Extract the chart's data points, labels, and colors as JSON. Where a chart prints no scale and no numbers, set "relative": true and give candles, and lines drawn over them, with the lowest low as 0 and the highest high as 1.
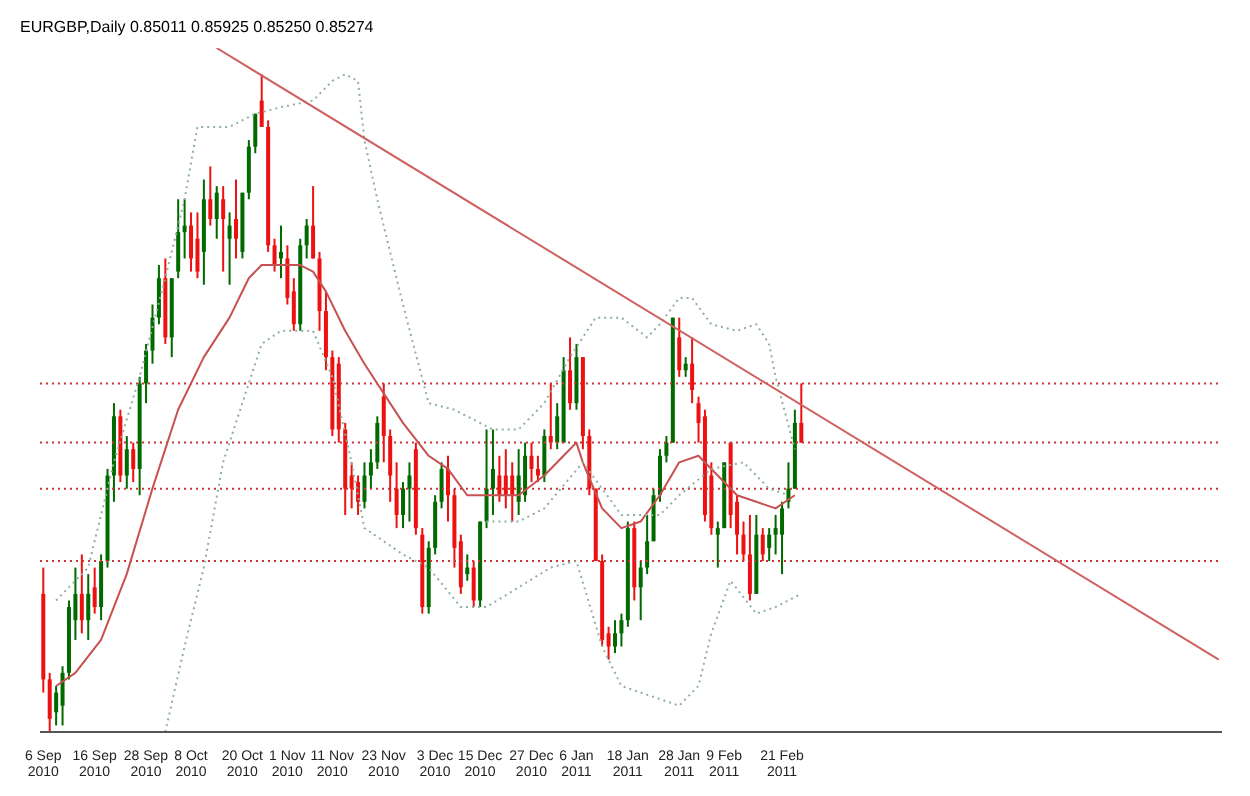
{
  "chart_data": {
    "type": "candlestick",
    "title": "EURGBP,Daily  0.85011 0.85925 0.85250 0.85274",
    "relative": true,
    "categories": [
      "6 Sep 2010",
      null,
      null,
      null,
      null,
      null,
      null,
      null,
      "16 Sep 2010",
      null,
      null,
      null,
      null,
      null,
      null,
      null,
      "28 Sep 2010",
      null,
      null,
      null,
      null,
      null,
      null,
      "8 Oct 2010",
      null,
      null,
      null,
      null,
      null,
      null,
      null,
      "20 Oct 2010",
      null,
      null,
      null,
      null,
      null,
      null,
      "1 Nov 2010",
      null,
      null,
      null,
      null,
      null,
      null,
      "11 Nov 2010",
      null,
      null,
      null,
      null,
      null,
      null,
      null,
      "23 Nov 2010",
      null,
      null,
      null,
      null,
      null,
      null,
      null,
      "3 Dec 2010",
      null,
      null,
      null,
      null,
      null,
      null,
      "15 Dec 2010",
      null,
      null,
      null,
      null,
      null,
      null,
      null,
      "27 Dec 2010",
      null,
      null,
      null,
      null,
      null,
      null,
      "6 Jan 2011",
      null,
      null,
      null,
      null,
      null,
      null,
      null,
      "18 Jan 2011",
      null,
      null,
      null,
      null,
      null,
      null,
      null,
      "28 Jan 2011",
      null,
      null,
      null,
      null,
      null,
      null,
      "9 Feb 2011",
      null,
      null,
      null,
      null,
      null,
      null,
      null,
      null,
      "21 Feb 2011",
      null,
      null,
      null,
      null,
      null,
      null,
      null,
      null,
      null,
      null,
      null,
      null,
      null,
      null,
      null,
      null,
      null,
      null,
      null,
      null,
      null,
      null,
      null,
      null,
      null,
      null,
      null,
      null,
      null,
      null,
      null,
      null,
      null,
      null,
      null,
      null,
      null,
      null,
      null,
      null,
      null,
      null,
      null,
      null,
      null,
      null,
      null,
      null,
      null,
      null,
      null,
      null,
      null,
      null,
      null,
      null,
      null,
      null,
      null,
      null,
      null,
      null,
      null,
      null,
      null,
      null,
      null,
      null
    ],
    "colors": [
      "#ee1111",
      "#ee1111",
      "#006a00",
      "#006a00",
      "#006a00",
      "#006a00",
      "#ee1111",
      "#006a00",
      "#ee1111",
      "#006a00",
      "#006a00",
      "#006a00",
      "#ee1111",
      "#006a00",
      "#ee1111",
      "#006a00",
      "#006a00",
      "#006a00",
      "#006a00",
      "#ee1111",
      "#006a00",
      "#006a00",
      "#006a00",
      "#ee1111",
      "#ee1111",
      "#006a00",
      "#ee1111",
      "#006a00",
      "#ee1111",
      "#006a00",
      "#ee1111",
      "#006a00",
      "#006a00",
      "#006a00",
      "#ee1111",
      "#ee1111",
      "#ee1111",
      "#006a00",
      "#ee1111",
      "#ee1111",
      "#006a00",
      "#006a00",
      "#ee1111",
      "#ee1111",
      "#ee1111",
      "#ee1111",
      "#ee1111",
      "#ee1111",
      "#ee1111",
      "#ee1111",
      "#006a00",
      "#006a00",
      "#006a00",
      "#ee1111",
      "#ee1111",
      "#ee1111",
      "#006a00",
      "#006a00",
      "#ee1111",
      "#ee1111",
      "#006a00",
      "#006a00",
      "#006a00",
      "#ee1111",
      "#ee1111",
      "#ee1111",
      "#006a00",
      "#ee1111",
      "#006a00",
      "#006a00",
      "#006a00",
      "#ee1111",
      "#ee1111",
      "#ee1111",
      "#006a00",
      "#006a00",
      "#ee1111",
      "#ee1111",
      "#006a00",
      "#ee1111",
      "#006a00",
      "#006a00",
      "#ee1111",
      "#006a00",
      "#ee1111",
      "#ee1111",
      "#ee1111",
      "#ee1111",
      "#ee1111",
      "#006a00",
      "#006a00",
      "#006a00",
      "#ee1111",
      "#006a00",
      "#006a00",
      "#006a00",
      "#006a00",
      "#006a00",
      "#006a00",
      "#ee1111",
      "#006a00",
      "#ee1111",
      "#ee1111",
      "#ee1111",
      "#ee1111",
      "#006a00",
      "#006a00",
      "#ee1111",
      "#ee1111",
      "#ee1111",
      "#ee1111",
      "#006a00",
      "#ee1111",
      "#006a00",
      "#006a00",
      "#006a00",
      "#006a00",
      "#006a00",
      "#ee1111",
      null,
      null,
      null,
      null,
      null,
      null,
      null,
      null,
      null,
      null,
      null,
      null,
      null,
      null,
      null,
      null,
      null,
      null,
      null,
      null,
      null,
      null,
      null,
      null,
      null,
      null,
      null,
      null,
      null,
      null,
      null,
      null,
      null,
      null,
      null,
      null,
      null,
      null,
      null,
      null,
      null,
      null,
      null,
      null,
      null,
      null,
      null,
      null,
      null,
      null,
      null,
      null,
      null,
      null,
      null,
      null,
      null,
      null,
      null,
      null,
      null,
      null,
      null,
      null,
      null
    ],
    "ohlc": [
      [
        0.21,
        0.25,
        0.06,
        0.08
      ],
      [
        0.08,
        0.09,
        0,
        0.02
      ],
      [
        0.03,
        0.07,
        0.01,
        0.06
      ],
      [
        0.04,
        0.1,
        0.01,
        0.09
      ],
      [
        0.09,
        0.2,
        0.08,
        0.19
      ],
      [
        0.17,
        0.25,
        0.14,
        0.21
      ],
      [
        0.21,
        0.27,
        0.15,
        0.17
      ],
      [
        0.17,
        0.24,
        0.14,
        0.21
      ],
      [
        0.22,
        0.25,
        0.18,
        0.19
      ],
      [
        0.19,
        0.27,
        0.17,
        0.26
      ],
      [
        0.26,
        0.4,
        0.25,
        0.39
      ],
      [
        0.39,
        0.5,
        0.35,
        0.48
      ],
      [
        0.48,
        0.49,
        0.38,
        0.39
      ],
      [
        0.39,
        0.45,
        0.37,
        0.43
      ],
      [
        0.43,
        0.44,
        0.38,
        0.4
      ],
      [
        0.4,
        0.54,
        0.36,
        0.53
      ],
      [
        0.53,
        0.59,
        0.5,
        0.58
      ],
      [
        0.58,
        0.65,
        0.56,
        0.63
      ],
      [
        0.63,
        0.71,
        0.62,
        0.69
      ],
      [
        0.69,
        0.72,
        0.59,
        0.6
      ],
      [
        0.6,
        0.69,
        0.57,
        0.69
      ],
      [
        0.7,
        0.81,
        0.69,
        0.76
      ],
      [
        0.76,
        0.81,
        0.72,
        0.77
      ],
      [
        0.77,
        0.79,
        0.7,
        0.72
      ],
      [
        0.75,
        0.79,
        0.69,
        0.7
      ],
      [
        0.73,
        0.84,
        0.68,
        0.81
      ],
      [
        0.81,
        0.86,
        0.77,
        0.78
      ],
      [
        0.78,
        0.83,
        0.75,
        0.82
      ],
      [
        0.81,
        0.83,
        0.7,
        0.78
      ],
      [
        0.75,
        0.79,
        0.68,
        0.77
      ],
      [
        0.78,
        0.84,
        0.72,
        0.75
      ],
      [
        0.73,
        0.82,
        0.72,
        0.82
      ],
      [
        0.82,
        0.9,
        0.81,
        0.89
      ],
      [
        0.89,
        0.94,
        0.88,
        0.94
      ],
      [
        0.96,
        1,
        0.92,
        0.92
      ],
      [
        0.92,
        0.93,
        0.73,
        0.74
      ],
      [
        0.74,
        0.75,
        0.7,
        0.71
      ],
      [
        0.72,
        0.77,
        0.69,
        0.73
      ],
      [
        0.72,
        0.74,
        0.65,
        0.66
      ],
      [
        0.67,
        0.69,
        0.61,
        0.62
      ],
      [
        0.62,
        0.75,
        0.61,
        0.74
      ],
      [
        0.74,
        0.78,
        0.72,
        0.77
      ],
      [
        0.77,
        0.83,
        0.72,
        0.72
      ],
      [
        0.72,
        0.73,
        0.61,
        0.64
      ],
      [
        0.64,
        0.67,
        0.55,
        0.57
      ],
      [
        0.57,
        0.58,
        0.45,
        0.46
      ],
      [
        0.56,
        0.57,
        0.44,
        0.46
      ],
      [
        0.46,
        0.47,
        0.33,
        0.37
      ],
      [
        0.39,
        0.41,
        0.34,
        0.37
      ],
      [
        0.38,
        0.39,
        0.33,
        0.35
      ],
      [
        0.35,
        0.41,
        0.34,
        0.39
      ],
      [
        0.39,
        0.43,
        0.37,
        0.41
      ],
      [
        0.41,
        0.48,
        0.4,
        0.47
      ],
      [
        0.51,
        0.53,
        0.41,
        0.45
      ],
      [
        0.45,
        0.46,
        0.35,
        0.39
      ],
      [
        0.37,
        0.41,
        0.31,
        0.33
      ],
      [
        0.33,
        0.38,
        0.31,
        0.37
      ],
      [
        0.37,
        0.41,
        0.32,
        0.39
      ],
      [
        0.43,
        0.44,
        0.3,
        0.31
      ],
      [
        0.3,
        0.31,
        0.18,
        0.19
      ],
      [
        0.19,
        0.29,
        0.18,
        0.28
      ],
      [
        0.28,
        0.36,
        0.27,
        0.35
      ],
      [
        0.35,
        0.41,
        0.34,
        0.4
      ],
      [
        0.4,
        0.42,
        0.32,
        0.36
      ],
      [
        0.36,
        0.37,
        0.25,
        0.28
      ],
      [
        0.29,
        0.3,
        0.21,
        0.22
      ],
      [
        0.24,
        0.27,
        0.23,
        0.25
      ],
      [
        0.25,
        0.26,
        0.19,
        0.2
      ],
      [
        0.2,
        0.32,
        0.19,
        0.32
      ],
      [
        0.32,
        0.46,
        0.31,
        0.37
      ],
      [
        0.37,
        0.46,
        0.33,
        0.4
      ],
      [
        0.39,
        0.42,
        0.35,
        0.36
      ],
      [
        0.39,
        0.43,
        0.34,
        0.36
      ],
      [
        0.39,
        0.41,
        0.32,
        0.36
      ],
      [
        0.35,
        0.43,
        0.33,
        0.39
      ],
      [
        0.36,
        0.44,
        0.35,
        0.42
      ],
      [
        0.42,
        0.44,
        0.38,
        0.4
      ],
      [
        0.4,
        0.42,
        0.38,
        0.39
      ],
      [
        0.39,
        0.46,
        0.38,
        0.45
      ],
      [
        0.45,
        0.53,
        0.43,
        0.44
      ],
      [
        0.44,
        0.5,
        0.43,
        0.48
      ],
      [
        0.44,
        0.57,
        0.44,
        0.55
      ],
      [
        0.55,
        0.6,
        0.49,
        0.5
      ],
      [
        0.5,
        0.59,
        0.49,
        0.57
      ],
      [
        0.57,
        0.57,
        0.43,
        0.45
      ],
      [
        0.45,
        0.46,
        0.36,
        0.37
      ],
      [
        0.37,
        0.37,
        0.26,
        0.26
      ],
      [
        0.26,
        0.27,
        0.13,
        0.14
      ],
      [
        0.15,
        0.16,
        0.11,
        0.13
      ],
      [
        0.13,
        0.17,
        0.12,
        0.15
      ],
      [
        0.15,
        0.18,
        0.13,
        0.17
      ],
      [
        0.17,
        0.32,
        0.16,
        0.31
      ],
      [
        0.31,
        0.32,
        0.2,
        0.22
      ],
      [
        0.22,
        0.26,
        0.17,
        0.25
      ],
      [
        0.25,
        0.33,
        0.24,
        0.29
      ],
      [
        0.29,
        0.37,
        0.29,
        0.36
      ],
      [
        0.36,
        0.43,
        0.35,
        0.42
      ],
      [
        0.42,
        0.45,
        0.41,
        0.44
      ],
      [
        0.44,
        0.63,
        0.44,
        0.63
      ],
      [
        0.6,
        0.63,
        0.54,
        0.55
      ],
      [
        0.55,
        0.57,
        0.54,
        0.56
      ],
      [
        0.56,
        0.6,
        0.5,
        0.52
      ],
      [
        0.5,
        0.51,
        0.44,
        0.47
      ],
      [
        0.48,
        0.49,
        0.32,
        0.33
      ],
      [
        0.39,
        0.41,
        0.3,
        0.31
      ],
      [
        0.3,
        0.32,
        0.25,
        0.31
      ],
      [
        0.31,
        0.41,
        0.31,
        0.41
      ],
      [
        0.44,
        0.44,
        0.31,
        0.33
      ],
      [
        0.35,
        0.36,
        0.27,
        0.3
      ],
      [
        0.3,
        0.32,
        0.26,
        0.27
      ],
      [
        0.27,
        0.33,
        0.2,
        0.21
      ],
      [
        0.21,
        0.33,
        0.21,
        0.3
      ],
      [
        0.3,
        0.31,
        0.26,
        0.27
      ],
      [
        0.28,
        0.31,
        0.26,
        0.3
      ],
      [
        0.3,
        0.33,
        0.27,
        0.31
      ],
      [
        0.3,
        0.35,
        0.24,
        0.34
      ],
      [
        0.35,
        0.41,
        0.34,
        0.37
      ],
      [
        0.37,
        0.49,
        0.37,
        0.47
      ],
      [
        0.47,
        0.53,
        0.44,
        0.44
      ],
      null,
      null,
      null,
      null,
      null,
      null,
      null,
      null,
      null,
      null,
      null,
      null,
      null,
      null,
      null,
      null,
      null,
      null,
      null,
      null,
      null,
      null,
      null,
      null,
      null,
      null,
      null,
      null,
      null,
      null,
      null,
      null,
      null,
      null,
      null,
      null,
      null,
      null,
      null,
      null,
      null,
      null,
      null,
      null,
      null,
      null,
      null,
      null,
      null,
      null,
      null,
      null,
      null,
      null,
      null,
      null,
      null,
      null,
      null,
      null,
      null,
      null,
      null,
      null,
      null
    ],
    "series": [
      {
        "type": "line",
        "color": "#c85050",
        "line_style": "solid",
        "values": [
          null,
          null,
          0.07,
          null,
          null,
          0.09,
          null,
          null,
          null,
          0.14,
          null,
          null,
          null,
          0.24,
          null,
          null,
          null,
          0.37,
          null,
          null,
          null,
          0.49,
          null,
          null,
          null,
          0.57,
          null,
          null,
          null,
          0.63,
          null,
          null,
          0.69,
          null,
          0.71,
          null,
          0.71,
          null,
          null,
          null,
          0.71,
          null,
          0.7,
          null,
          0.67,
          null,
          null,
          0.61,
          null,
          null,
          0.56,
          null,
          0.53,
          null,
          null,
          null,
          0.47,
          null,
          null,
          null,
          0.42,
          null,
          null,
          0.4,
          null,
          null,
          0.36,
          null,
          null,
          null,
          0.36,
          null,
          null,
          null,
          0.36,
          null,
          null,
          null,
          0.39,
          null,
          null,
          0.42,
          null,
          0.44,
          0.41,
          null,
          null,
          0.34,
          null,
          null,
          0.31,
          null,
          null,
          0.32,
          null,
          null,
          0.36,
          null,
          null,
          0.41,
          null,
          null,
          0.42,
          null,
          null,
          0.39,
          null,
          null,
          0.36,
          null,
          null,
          0.35,
          null,
          null,
          0.34,
          null,
          null,
          0.36,
          null,
          null,
          null,
          null,
          null,
          null,
          null,
          null,
          null,
          null,
          null,
          null,
          null,
          null,
          null,
          null,
          null,
          null,
          null,
          null,
          null,
          null,
          null,
          null,
          null,
          null,
          null,
          null,
          null,
          null,
          null,
          null,
          null,
          null,
          null,
          null,
          null,
          null,
          null,
          null,
          null,
          null,
          null,
          null,
          null,
          null,
          null,
          null,
          null,
          null,
          null,
          null,
          null,
          null,
          null,
          null,
          null,
          null,
          null,
          null,
          null,
          null,
          null,
          null,
          null,
          null
        ]
      },
      {
        "type": "line",
        "color": "#8fb0a0",
        "line_style": "dotted",
        "values": [
          null,
          null,
          0.2,
          null,
          null,
          null,
          null,
          0.25,
          null,
          null,
          null,
          0.41,
          null,
          null,
          null,
          0.54,
          null,
          null,
          null,
          0.69,
          null,
          null,
          0.81,
          null,
          0.92,
          null,
          null,
          null,
          null,
          0.92,
          null,
          null,
          null,
          0.94,
          null,
          null,
          null,
          0.95,
          null,
          null,
          null,
          null,
          0.96,
          null,
          null,
          0.99,
          null,
          1,
          null,
          0.99,
          0.9,
          null,
          0.81,
          null,
          null,
          null,
          0.65,
          null,
          null,
          null,
          0.5,
          null,
          null,
          null,
          0.49,
          null,
          null,
          null,
          null,
          null,
          0.46,
          null,
          null,
          null,
          0.46,
          null,
          null,
          null,
          0.5,
          null,
          null,
          null,
          0.57,
          null,
          null,
          null,
          0.63,
          null,
          null,
          null,
          0.63,
          null,
          null,
          null,
          0.6,
          null,
          0.62,
          null,
          null,
          0.66,
          null,
          0.66,
          null,
          null,
          0.62,
          null,
          null,
          null,
          0.61,
          null,
          null,
          0.62,
          null,
          0.59,
          0.54,
          null,
          null,
          0.43,
          null,
          null,
          null,
          null,
          null,
          null,
          null,
          null,
          null,
          null,
          null,
          null,
          null,
          null,
          null,
          null,
          null,
          null,
          null,
          null,
          null,
          null,
          null,
          null,
          null,
          null,
          null,
          null,
          null,
          null,
          null,
          null,
          null,
          null,
          null,
          null,
          null,
          null,
          null,
          null,
          null,
          null,
          null,
          null,
          null,
          null,
          null,
          null,
          null,
          null,
          null,
          null,
          null,
          null,
          null,
          null,
          null,
          null,
          null,
          null,
          null,
          null,
          null,
          null,
          null,
          null
        ]
      },
      {
        "type": "line",
        "color": "#8fb0a0",
        "line_style": "dotted",
        "values": [
          null,
          null,
          null,
          null,
          null,
          null,
          null,
          null,
          null,
          null,
          null,
          null,
          null,
          null,
          null,
          null,
          null,
          null,
          null,
          0,
          null,
          null,
          0.13,
          null,
          null,
          0.25,
          null,
          null,
          0.41,
          null,
          null,
          0.5,
          null,
          null,
          0.59,
          null,
          null,
          0.61,
          null,
          null,
          null,
          null,
          0.61,
          null,
          null,
          0.54,
          null,
          null,
          0.41,
          null,
          0.31,
          null,
          null,
          0.29,
          null,
          null,
          0.27,
          null,
          null,
          null,
          0.25,
          null,
          null,
          null,
          null,
          0.19,
          null,
          null,
          null,
          0.19,
          null,
          null,
          null,
          null,
          0.22,
          null,
          null,
          null,
          null,
          0.25,
          null,
          null,
          null,
          0.26,
          null,
          null,
          null,
          0.13,
          null,
          null,
          0.07,
          null,
          null,
          null,
          null,
          null,
          0.05,
          null,
          null,
          0.04,
          null,
          null,
          0.07,
          null,
          0.15,
          null,
          null,
          0.23,
          null,
          null,
          null,
          0.18,
          null,
          null,
          0.19,
          null,
          null,
          null,
          0.21,
          null,
          null,
          null,
          null,
          null,
          null,
          null,
          null,
          null,
          null,
          null,
          null,
          null,
          null,
          null,
          null,
          null,
          null,
          null,
          null,
          null,
          null,
          null,
          null,
          null,
          null,
          null,
          null,
          null,
          null,
          null,
          null,
          null,
          null,
          null,
          null,
          null,
          null,
          null,
          null,
          null,
          null,
          null,
          null,
          null,
          null,
          null,
          null,
          null,
          null,
          null,
          null,
          null,
          null,
          null,
          null,
          null,
          null,
          null,
          null,
          null,
          null,
          null,
          null,
          null
        ]
      },
      {
        "type": "line",
        "color": "#8fb0a0",
        "line_style": "dotted",
        "values": [
          null,
          null,
          null,
          null,
          null,
          null,
          null,
          null,
          null,
          null,
          null,
          null,
          null,
          null,
          null,
          null,
          null,
          null,
          null,
          null,
          null,
          null,
          null,
          null,
          null,
          null,
          null,
          null,
          null,
          null,
          null,
          null,
          null,
          null,
          null,
          null,
          null,
          null,
          null,
          null,
          null,
          null,
          null,
          null,
          null,
          null,
          null,
          null,
          null,
          null,
          null,
          null,
          null,
          null,
          null,
          null,
          null,
          null,
          null,
          null,
          null,
          null,
          null,
          null,
          null,
          null,
          null,
          null,
          null,
          0.32,
          null,
          null,
          null,
          null,
          0.32,
          null,
          null,
          null,
          0.34,
          null,
          null,
          null,
          null,
          null,
          0.41,
          null,
          null,
          null,
          null,
          null,
          0.33,
          null,
          null,
          null,
          null,
          null,
          0.33,
          null,
          null,
          0.36,
          null,
          null,
          null,
          null,
          0.4,
          null,
          null,
          null,
          null,
          0.41,
          null,
          null,
          null,
          0.37,
          null,
          null,
          0.36,
          null,
          null,
          null,
          null,
          null,
          null,
          null,
          null,
          null,
          null,
          null,
          null,
          null,
          null,
          null,
          null,
          null,
          null,
          null,
          null,
          null,
          null,
          null,
          null,
          null,
          null,
          null,
          null,
          null,
          null,
          null,
          null,
          null,
          null,
          null,
          null,
          null,
          null,
          null,
          null,
          null,
          null,
          null,
          null,
          null,
          null,
          null,
          null,
          null,
          null,
          null,
          null,
          null,
          null,
          null,
          null,
          null,
          null,
          null,
          null,
          null,
          null,
          null,
          null,
          null,
          null,
          null
        ]
      },
      {
        "type": "line",
        "color": "#d06060",
        "line_style": "solid",
        "values": [
          null,
          null,
          null,
          null,
          null,
          null,
          null,
          null,
          null,
          null,
          null,
          null,
          null,
          null,
          null,
          null,
          null,
          null,
          null,
          null,
          null,
          null,
          null,
          null,
          null,
          null,
          null,
          1.04,
          null,
          null,
          null,
          null,
          null,
          null,
          null,
          null,
          null,
          null,
          null,
          null,
          null,
          null,
          null,
          null,
          null,
          null,
          null,
          null,
          null,
          null,
          null,
          null,
          null,
          null,
          null,
          null,
          null,
          null,
          null,
          null,
          null,
          null,
          null,
          null,
          null,
          null,
          null,
          null,
          null,
          null,
          null,
          null,
          null,
          null,
          null,
          null,
          null,
          null,
          null,
          null,
          null,
          null,
          null,
          null,
          null,
          null,
          null,
          null,
          null,
          null,
          null,
          null,
          null,
          null,
          null,
          null,
          null,
          null,
          null,
          null,
          null,
          null,
          null,
          null,
          null,
          null,
          null,
          null,
          null,
          null,
          null,
          null,
          null,
          null,
          null,
          null,
          null,
          null,
          null,
          null,
          null,
          null,
          null,
          null,
          null,
          null,
          null,
          null,
          null,
          null,
          null,
          null,
          null,
          null,
          null,
          null,
          null,
          null,
          null,
          null,
          null,
          null,
          null,
          null,
          null,
          null,
          null,
          null,
          null,
          null,
          null,
          null,
          null,
          null,
          null,
          null,
          null,
          null,
          null,
          null,
          null,
          null,
          null,
          null,
          null,
          null,
          null,
          null,
          null,
          null,
          null,
          null,
          null,
          null,
          null,
          null,
          null,
          null,
          null,
          null,
          null,
          null,
          null,
          0.11
        ]
      }
    ],
    "ref_lines": [
      {
        "axis": "y",
        "value": 0.53,
        "color": "#cc3333",
        "line_style": "dotted"
      },
      {
        "axis": "y",
        "value": 0.44,
        "color": "#cc3333",
        "line_style": "dotted"
      },
      {
        "axis": "y",
        "value": 0.37,
        "color": "#cc3333",
        "line_style": "dotted"
      },
      {
        "axis": "y",
        "value": 0.26,
        "color": "#cc3333",
        "line_style": "dotted"
      }
    ]
  }
}
